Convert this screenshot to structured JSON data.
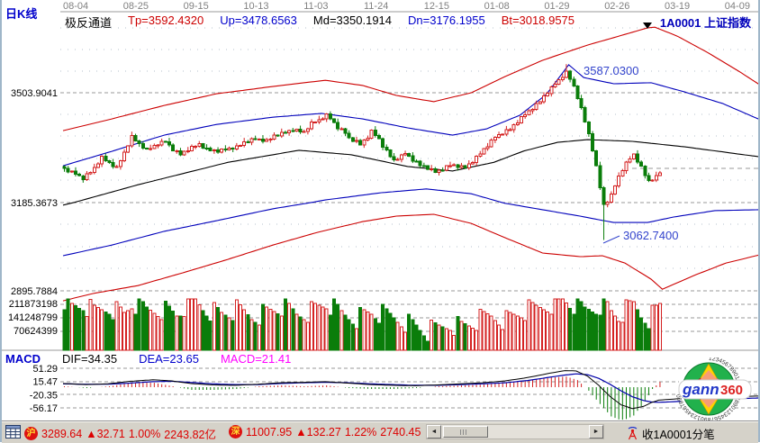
{
  "header": {
    "chart_type_label": "日K线",
    "dates": [
      "08-04",
      "08-25",
      "09-15",
      "10-13",
      "11-03",
      "11-24",
      "12-15",
      "01-08",
      "01-29",
      "02-26",
      "03-19",
      "04-09"
    ],
    "indicator_name": "极反通道",
    "indicator_values": [
      {
        "label": "Tp=3592.4320",
        "color": "#cc0000"
      },
      {
        "label": "Up=3478.6563",
        "color": "#0000cc"
      },
      {
        "label": "Md=3350.1914",
        "color": "#000000"
      },
      {
        "label": "Dn=3176.1955",
        "color": "#0000cc"
      },
      {
        "label": "Bt=3018.9575",
        "color": "#cc0000"
      }
    ],
    "symbol_line": "1A0001  上证指数"
  },
  "macd_panel": {
    "name": "MACD",
    "dif_label": "DIF=34.35",
    "dea_label": "DEA=23.65",
    "macd_label": "MACD=21.41",
    "colors": {
      "dif": "#000000",
      "dea": "#0000cc",
      "macd": "#ff00ff"
    }
  },
  "annotations": {
    "swing_high": "3587.0300",
    "swing_low": "3062.7400"
  },
  "status_bar": {
    "sh": {
      "market": "沪",
      "index": "3289.64",
      "arrow": "▲",
      "change": "32.71",
      "pct": "1.00%",
      "amount": "2243.82亿"
    },
    "sz": {
      "market": "深",
      "index": "11007.95",
      "arrow": "▲",
      "change": "132.27",
      "pct": "1.22%",
      "amount": "2740.45"
    },
    "feed_label": "收1A0001分笔"
  },
  "logo": {
    "text_gann": "gann",
    "text_360": "360",
    "ring_digits": "1234567890123456789012345678901234567890"
  },
  "chart_data": {
    "type": "candlestick+volume+macd",
    "symbol": "1A0001 上证指数",
    "bars": 160,
    "x_date_ticks": [
      "08-04",
      "08-25",
      "09-15",
      "10-13",
      "11-03",
      "11-24",
      "12-15",
      "01-08",
      "01-29",
      "02-26",
      "03-19",
      "04-09"
    ],
    "price_ticks": [
      3503.9041,
      3185.3673,
      2895.7884
    ],
    "volume_ticks": [
      211873198,
      141248799,
      70624399
    ],
    "macd_ticks": [
      51.29,
      15.47,
      -20.35,
      -56.17
    ],
    "indicator": {
      "name": "极反通道",
      "Tp": 3592.432,
      "Up": 3478.6563,
      "Md": 3350.1914,
      "Dn": 3176.1955,
      "Bt": 3018.9575
    },
    "macd_last": {
      "DIF": 34.35,
      "DEA": 23.65,
      "MACD": 21.41
    },
    "swing_high": 3587.03,
    "swing_low": 3062.74,
    "close_waypoints": [
      [
        0,
        3282
      ],
      [
        3,
        3268
      ],
      [
        5,
        3256
      ],
      [
        8,
        3285
      ],
      [
        10,
        3316
      ],
      [
        12,
        3300
      ],
      [
        14,
        3287
      ],
      [
        16,
        3330
      ],
      [
        18,
        3376
      ],
      [
        20,
        3355
      ],
      [
        22,
        3339
      ],
      [
        25,
        3355
      ],
      [
        27,
        3363
      ],
      [
        29,
        3340
      ],
      [
        31,
        3326
      ],
      [
        34,
        3345
      ],
      [
        36,
        3355
      ],
      [
        38,
        3340
      ],
      [
        41,
        3334
      ],
      [
        44,
        3342
      ],
      [
        46,
        3347
      ],
      [
        48,
        3360
      ],
      [
        51,
        3371
      ],
      [
        54,
        3365
      ],
      [
        56,
        3379
      ],
      [
        58,
        3385
      ],
      [
        61,
        3397
      ],
      [
        64,
        3390
      ],
      [
        66,
        3415
      ],
      [
        68,
        3425
      ],
      [
        70,
        3439
      ],
      [
        71,
        3430
      ],
      [
        73,
        3402
      ],
      [
        75,
        3388
      ],
      [
        76,
        3373
      ],
      [
        78,
        3362
      ],
      [
        79,
        3355
      ],
      [
        81,
        3375
      ],
      [
        82,
        3392
      ],
      [
        84,
        3370
      ],
      [
        85,
        3350
      ],
      [
        87,
        3320
      ],
      [
        88,
        3308
      ],
      [
        90,
        3320
      ],
      [
        91,
        3329
      ],
      [
        93,
        3310
      ],
      [
        95,
        3295
      ],
      [
        97,
        3285
      ],
      [
        99,
        3274
      ],
      [
        101,
        3283
      ],
      [
        103,
        3295
      ],
      [
        105,
        3290
      ],
      [
        107,
        3287
      ],
      [
        109,
        3305
      ],
      [
        111,
        3329
      ],
      [
        113,
        3350
      ],
      [
        115,
        3376
      ],
      [
        117,
        3388
      ],
      [
        119,
        3399
      ],
      [
        121,
        3420
      ],
      [
        123,
        3441
      ],
      [
        125,
        3460
      ],
      [
        127,
        3480
      ],
      [
        129,
        3505
      ],
      [
        131,
        3530
      ],
      [
        133,
        3552
      ],
      [
        134,
        3564
      ],
      [
        135,
        3545
      ],
      [
        136,
        3522
      ],
      [
        137,
        3490
      ],
      [
        138,
        3457
      ],
      [
        139,
        3420
      ],
      [
        140,
        3384
      ],
      [
        141,
        3340
      ],
      [
        142,
        3290
      ],
      [
        143,
        3230
      ],
      [
        144,
        3177
      ],
      [
        145,
        3190
      ],
      [
        146,
        3206
      ],
      [
        147,
        3235
      ],
      [
        148,
        3261
      ],
      [
        149,
        3282
      ],
      [
        150,
        3300
      ],
      [
        151,
        3314
      ],
      [
        152,
        3324
      ],
      [
        153,
        3306
      ],
      [
        154,
        3287
      ],
      [
        155,
        3265
      ],
      [
        156,
        3248
      ],
      [
        157,
        3255
      ],
      [
        158,
        3261
      ],
      [
        159,
        3274
      ]
    ],
    "overrides": {
      "134": {
        "high": 3587.03
      },
      "144": {
        "low": 3062.74
      }
    },
    "volumes_millions_waypoints": [
      [
        0,
        232
      ],
      [
        2,
        187
      ],
      [
        5,
        204
      ],
      [
        8,
        171
      ],
      [
        12,
        195
      ],
      [
        16,
        163
      ],
      [
        18,
        212
      ],
      [
        22,
        179
      ],
      [
        26,
        187
      ],
      [
        30,
        163
      ],
      [
        34,
        224
      ],
      [
        38,
        187
      ],
      [
        42,
        163
      ],
      [
        46,
        179
      ],
      [
        50,
        155
      ],
      [
        54,
        171
      ],
      [
        58,
        195
      ],
      [
        62,
        163
      ],
      [
        66,
        179
      ],
      [
        70,
        212
      ],
      [
        74,
        163
      ],
      [
        78,
        147
      ],
      [
        82,
        171
      ],
      [
        86,
        155
      ],
      [
        90,
        138
      ],
      [
        94,
        106
      ],
      [
        97,
        81
      ],
      [
        100,
        98
      ],
      [
        103,
        122
      ],
      [
        106,
        106
      ],
      [
        110,
        130
      ],
      [
        114,
        155
      ],
      [
        118,
        138
      ],
      [
        122,
        171
      ],
      [
        126,
        187
      ],
      [
        130,
        212
      ],
      [
        133,
        232
      ],
      [
        136,
        204
      ],
      [
        139,
        179
      ],
      [
        142,
        195
      ],
      [
        144,
        220
      ],
      [
        146,
        171
      ],
      [
        148,
        155
      ],
      [
        150,
        179
      ],
      [
        152,
        204
      ],
      [
        154,
        163
      ],
      [
        156,
        147
      ],
      [
        158,
        179
      ],
      [
        159,
        204
      ]
    ],
    "channel_lines": {
      "Tp": {
        "color": "#cc0000",
        "points": [
          [
            0,
            3394
          ],
          [
            13,
            3428
          ],
          [
            27,
            3467
          ],
          [
            41,
            3501
          ],
          [
            56,
            3522
          ],
          [
            70,
            3540
          ],
          [
            80,
            3525
          ],
          [
            89,
            3496
          ],
          [
            99,
            3478
          ],
          [
            109,
            3504
          ],
          [
            118,
            3551
          ],
          [
            128,
            3598
          ],
          [
            140,
            3642
          ],
          [
            150,
            3673
          ],
          [
            156,
            3692
          ],
          [
            158,
            3694
          ],
          [
            164,
            3668
          ],
          [
            172,
            3621
          ],
          [
            180,
            3569
          ],
          [
            186,
            3527
          ]
        ]
      },
      "Up": {
        "color": "#0000bb",
        "points": [
          [
            0,
            3292
          ],
          [
            13,
            3334
          ],
          [
            27,
            3381
          ],
          [
            41,
            3412
          ],
          [
            56,
            3433
          ],
          [
            69,
            3444
          ],
          [
            80,
            3428
          ],
          [
            92,
            3402
          ],
          [
            104,
            3381
          ],
          [
            113,
            3399
          ],
          [
            122,
            3439
          ],
          [
            129,
            3499
          ],
          [
            135,
            3585
          ],
          [
            139,
            3548
          ],
          [
            147,
            3530
          ],
          [
            157,
            3533
          ],
          [
            166,
            3506
          ],
          [
            176,
            3473
          ],
          [
            186,
            3426
          ]
        ]
      },
      "Md": {
        "color": "#000000",
        "points": [
          [
            0,
            3177
          ],
          [
            20,
            3237
          ],
          [
            44,
            3302
          ],
          [
            63,
            3337
          ],
          [
            77,
            3324
          ],
          [
            92,
            3290
          ],
          [
            104,
            3277
          ],
          [
            115,
            3302
          ],
          [
            123,
            3335
          ],
          [
            132,
            3360
          ],
          [
            140,
            3368
          ],
          [
            152,
            3363
          ],
          [
            166,
            3347
          ],
          [
            186,
            3318
          ]
        ]
      },
      "Dn": {
        "color": "#0000bb",
        "points": [
          [
            0,
            3011
          ],
          [
            13,
            3046
          ],
          [
            27,
            3091
          ],
          [
            41,
            3126
          ],
          [
            56,
            3165
          ],
          [
            70,
            3193
          ],
          [
            85,
            3214
          ],
          [
            97,
            3225
          ],
          [
            109,
            3211
          ],
          [
            118,
            3183
          ],
          [
            128,
            3162
          ],
          [
            138,
            3141
          ],
          [
            147,
            3120
          ],
          [
            156,
            3120
          ],
          [
            163,
            3138
          ],
          [
            174,
            3159
          ],
          [
            186,
            3162
          ]
        ]
      },
      "Bt": {
        "color": "#cc0000",
        "points": [
          [
            0,
            2863
          ],
          [
            8,
            2887
          ],
          [
            20,
            2913
          ],
          [
            32,
            2955
          ],
          [
            44,
            2999
          ],
          [
            56,
            3046
          ],
          [
            68,
            3088
          ],
          [
            80,
            3123
          ],
          [
            89,
            3141
          ],
          [
            99,
            3147
          ],
          [
            109,
            3117
          ],
          [
            118,
            3070
          ],
          [
            128,
            3020
          ],
          [
            138,
            3008
          ],
          [
            144,
            3011
          ],
          [
            150,
            2987
          ],
          [
            157,
            2934
          ],
          [
            160,
            2901
          ],
          [
            169,
            2949
          ],
          [
            177,
            2987
          ],
          [
            186,
            3014
          ]
        ]
      }
    },
    "dif_waypoints": [
      [
        0,
        10
      ],
      [
        6,
        7
      ],
      [
        12,
        9
      ],
      [
        18,
        16
      ],
      [
        24,
        20
      ],
      [
        29,
        17
      ],
      [
        34,
        10
      ],
      [
        40,
        6
      ],
      [
        46,
        5
      ],
      [
        52,
        8
      ],
      [
        58,
        12
      ],
      [
        64,
        13
      ],
      [
        70,
        15
      ],
      [
        76,
        11
      ],
      [
        82,
        7
      ],
      [
        88,
        5
      ],
      [
        94,
        4
      ],
      [
        100,
        6
      ],
      [
        106,
        9
      ],
      [
        112,
        12
      ],
      [
        118,
        17
      ],
      [
        124,
        26
      ],
      [
        130,
        38
      ],
      [
        134,
        45
      ],
      [
        137,
        44
      ],
      [
        140,
        30
      ],
      [
        143,
        5
      ],
      [
        146,
        -25
      ],
      [
        149,
        -48
      ],
      [
        152,
        -58
      ],
      [
        155,
        -52
      ],
      [
        157,
        -42
      ],
      [
        159,
        -35
      ],
      [
        166,
        -30
      ],
      [
        176,
        -26
      ],
      [
        186,
        -24
      ]
    ],
    "dea_waypoints": [
      [
        0,
        9
      ],
      [
        6,
        8
      ],
      [
        12,
        8
      ],
      [
        18,
        11
      ],
      [
        24,
        15
      ],
      [
        29,
        16
      ],
      [
        34,
        13
      ],
      [
        40,
        9
      ],
      [
        46,
        7
      ],
      [
        52,
        7
      ],
      [
        58,
        10
      ],
      [
        64,
        12
      ],
      [
        70,
        13
      ],
      [
        76,
        12
      ],
      [
        82,
        9
      ],
      [
        88,
        7
      ],
      [
        94,
        5
      ],
      [
        100,
        5
      ],
      [
        106,
        7
      ],
      [
        112,
        9
      ],
      [
        118,
        12
      ],
      [
        124,
        18
      ],
      [
        130,
        27
      ],
      [
        134,
        33
      ],
      [
        137,
        36
      ],
      [
        140,
        34
      ],
      [
        143,
        24
      ],
      [
        146,
        8
      ],
      [
        149,
        -10
      ],
      [
        152,
        -26
      ],
      [
        155,
        -36
      ],
      [
        157,
        -40
      ],
      [
        159,
        -41
      ],
      [
        166,
        -38
      ],
      [
        176,
        -33
      ],
      [
        186,
        -29
      ]
    ],
    "colors": {
      "up": "#d42222",
      "down": "#0a7d0a",
      "grid_dashed": "#999999",
      "grid_dotted": "#b6c2ce"
    }
  }
}
